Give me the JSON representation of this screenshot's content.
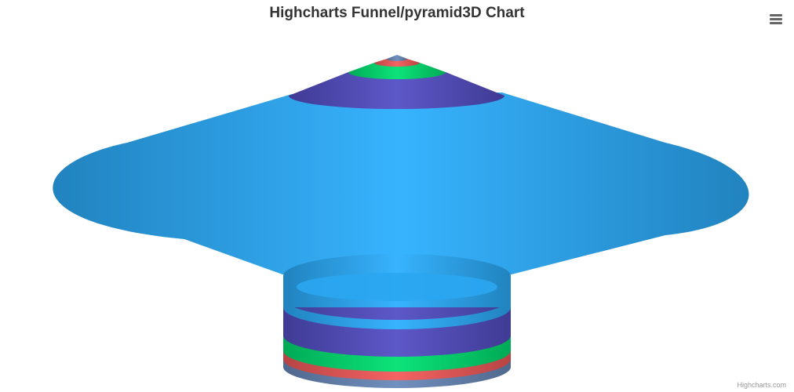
{
  "title": "Highcharts Funnel/pyramid3D Chart",
  "credits": "Highcharts.com",
  "menu_icon": "hamburger-menu-icon",
  "chart_data": {
    "type": "funnel3d",
    "title": "Highcharts Funnel/pyramid3D Chart",
    "legend": false,
    "grid": false,
    "segments": [
      {
        "color": "#6b8abc"
      },
      {
        "color": "#f45b5b"
      },
      {
        "color": "#00e272"
      },
      {
        "color": "#544fc5"
      },
      {
        "color": "#2caffe"
      }
    ]
  }
}
